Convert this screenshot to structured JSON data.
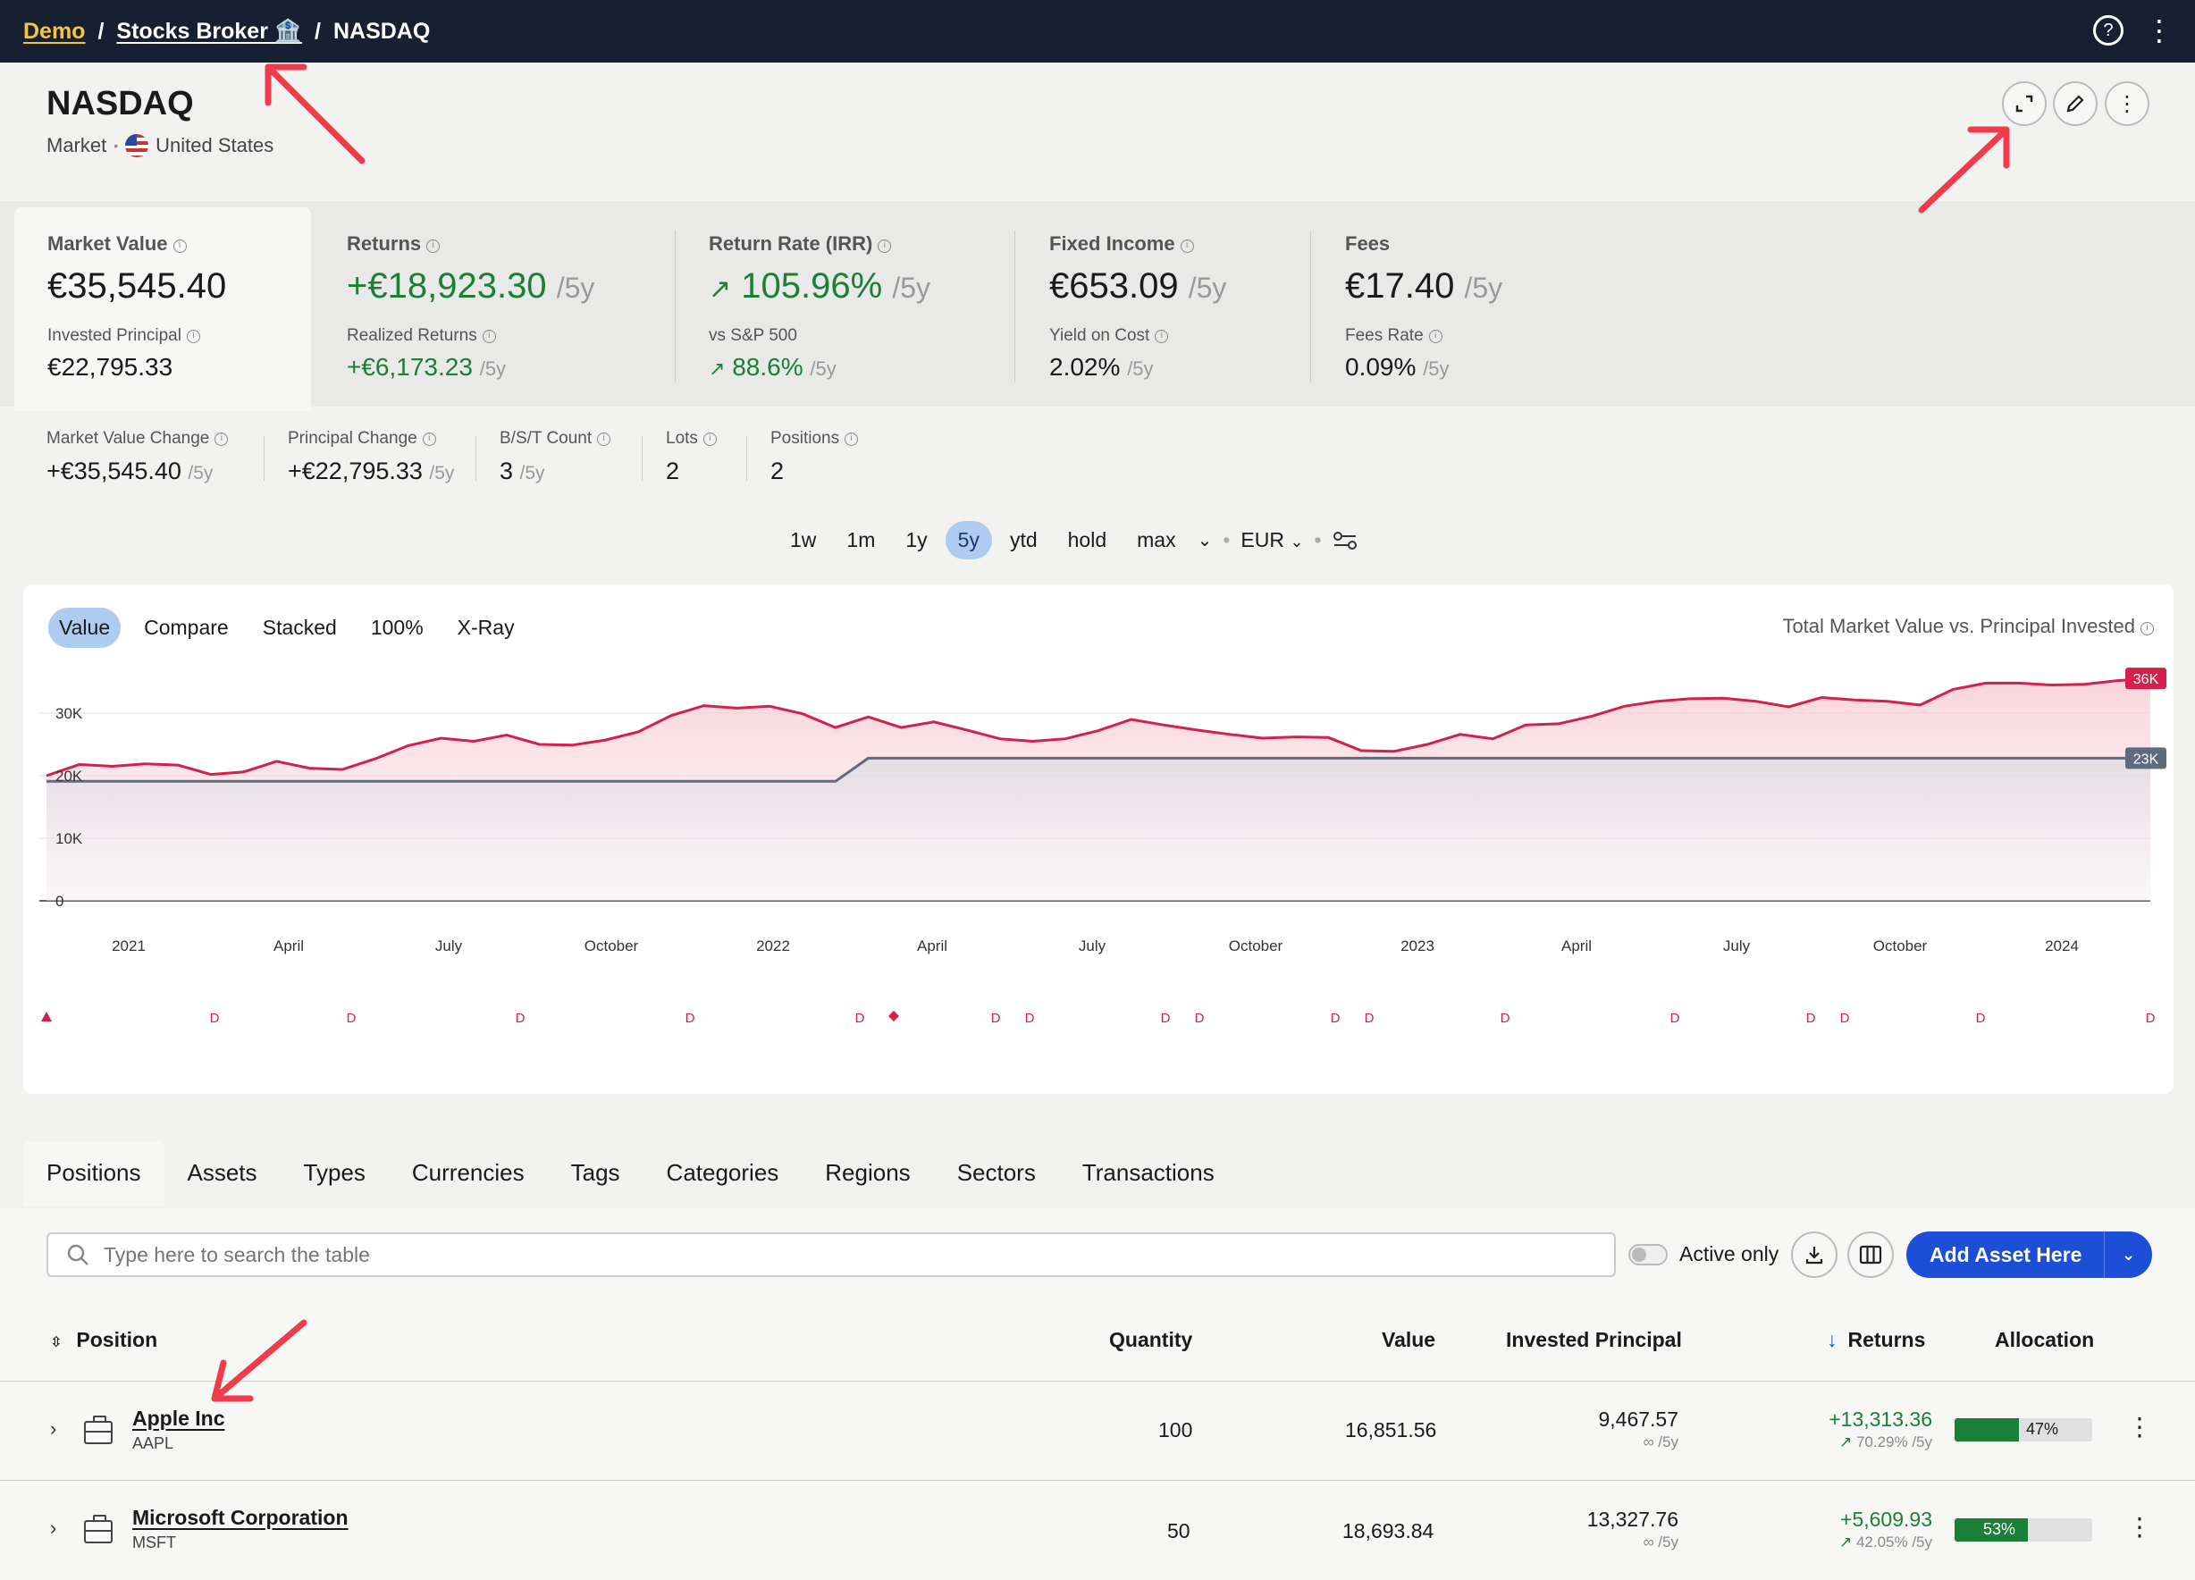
{
  "breadcrumb": {
    "demo": "Demo",
    "broker": "Stocks Broker 🏦",
    "current": "NASDAQ",
    "sep": "/"
  },
  "header": {
    "title": "NASDAQ",
    "type": "Market",
    "dot": "•",
    "country": "United States"
  },
  "stats": [
    {
      "label": "Market Value",
      "value": "€35,545.40",
      "suffix": "",
      "sub_label": "Invested Principal",
      "sub_value": "€22,795.33",
      "sub_suffix": ""
    },
    {
      "label": "Returns",
      "value": "+€18,923.30",
      "suffix": "/5y",
      "sub_label": "Realized Returns",
      "sub_value": "+€6,173.23",
      "sub_suffix": "/5y"
    },
    {
      "label": "Return Rate (IRR)",
      "value": "105.96%",
      "suffix": "/5y",
      "sub_label": "vs S&P 500",
      "sub_value": "88.6%",
      "sub_suffix": "/5y"
    },
    {
      "label": "Fixed Income",
      "value": "€653.09",
      "suffix": "/5y",
      "sub_label": "Yield on Cost",
      "sub_value": "2.02%",
      "sub_suffix": "/5y"
    },
    {
      "label": "Fees",
      "value": "€17.40",
      "suffix": "/5y",
      "sub_label": "Fees Rate",
      "sub_value": "0.09%",
      "sub_suffix": "/5y"
    }
  ],
  "substats": [
    {
      "label": "Market Value Change",
      "value": "+€35,545.40",
      "suffix": "/5y"
    },
    {
      "label": "Principal Change",
      "value": "+€22,795.33",
      "suffix": "/5y"
    },
    {
      "label": "B/S/T Count",
      "value": "3",
      "suffix": "/5y"
    },
    {
      "label": "Lots",
      "value": "2",
      "suffix": ""
    },
    {
      "label": "Positions",
      "value": "2",
      "suffix": ""
    }
  ],
  "ranges": [
    "1w",
    "1m",
    "1y",
    "5y",
    "ytd",
    "hold",
    "max"
  ],
  "active_range": "5y",
  "currency": "EUR",
  "modes": [
    "Value",
    "Compare",
    "Stacked",
    "100%",
    "X-Ray"
  ],
  "chart_data": {
    "type": "area",
    "title": "Total Market Value vs. Principal Invested",
    "x_ticks": [
      "2021",
      "April",
      "July",
      "October",
      "2022",
      "April",
      "July",
      "October",
      "2023",
      "April",
      "July",
      "October",
      "2024"
    ],
    "y_ticks": [
      "0",
      "10K",
      "20K",
      "30K"
    ],
    "ylim": [
      0,
      36000
    ],
    "series": [
      {
        "values": [
          20000,
          21800,
          21500,
          21900,
          21700,
          20200,
          20600,
          22300,
          21200,
          21000,
          22700,
          24800,
          26000,
          25500,
          26500,
          25000,
          24900,
          25700,
          27000,
          29600,
          31200,
          30800,
          31100,
          29900,
          27700,
          29400,
          27700,
          28600,
          27300,
          25900,
          25500,
          25900,
          27200,
          29000,
          28100,
          27300,
          26600,
          26000,
          26200,
          26100,
          24000,
          23900,
          25000,
          26600,
          25900,
          28100,
          28300,
          29500,
          31100,
          31900,
          32300,
          32400,
          31900,
          31000,
          32500,
          32100,
          31900,
          31300,
          33800,
          34800,
          34800,
          34500,
          34600,
          35200,
          35545
        ]
      },
      {
        "values": [
          19100,
          19100,
          19100,
          19100,
          19100,
          19100,
          19100,
          19100,
          19100,
          19100,
          19100,
          19100,
          19100,
          19100,
          19100,
          19100,
          19100,
          19100,
          19100,
          19100,
          19100,
          19100,
          19100,
          19100,
          19100,
          22800,
          22800,
          22800,
          22800,
          22800,
          22800,
          22800,
          22800,
          22800,
          22800,
          22800,
          22800,
          22800,
          22800,
          22800,
          22800,
          22800,
          22800,
          22800,
          22800,
          22800,
          22800,
          22800,
          22800,
          22800,
          22800,
          22800,
          22800,
          22800,
          22800,
          22800,
          22800,
          22800,
          22800,
          22800,
          22800,
          22800,
          22800,
          22800,
          22795
        ]
      }
    ],
    "end_labels": [
      "36K",
      "23K"
    ],
    "event_marker": "D",
    "colors": {
      "value": "#d4204a",
      "principal": "#5f6b7d"
    }
  },
  "tabs": [
    "Positions",
    "Assets",
    "Types",
    "Currencies",
    "Tags",
    "Categories",
    "Regions",
    "Sectors",
    "Transactions"
  ],
  "table": {
    "search_placeholder": "Type here to search the table",
    "active_only": "Active only",
    "add_button": "Add Asset Here",
    "columns": [
      "Position",
      "Quantity",
      "Value",
      "Invested Principal",
      "Returns",
      "Allocation"
    ],
    "rows": [
      {
        "name": "Apple Inc",
        "ticker": "AAPL",
        "quantity": "100",
        "value": "16,851.56",
        "principal": "9,467.57",
        "principal_sub": "∞ /5y",
        "returns": "+13,313.36",
        "returns_sub": "70.29% /5y",
        "allocation": "47%",
        "alloc_frac": 0.47
      },
      {
        "name": "Microsoft Corporation",
        "ticker": "MSFT",
        "quantity": "50",
        "value": "18,693.84",
        "principal": "13,327.76",
        "principal_sub": "∞ /5y",
        "returns": "+5,609.93",
        "returns_sub": "42.05% /5y",
        "allocation": "53%",
        "alloc_frac": 0.53
      }
    ]
  }
}
